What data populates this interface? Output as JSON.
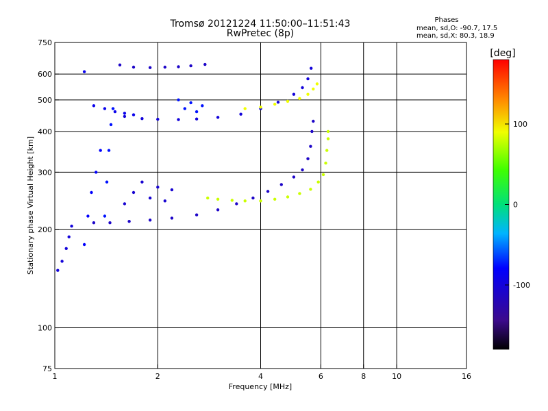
{
  "chart_data": {
    "type": "scatter",
    "title": "Tromsø 20121224 11:50:00–11:51:43",
    "subtitle": "RwPretec (8p)",
    "xlabel": "Frequency [MHz]",
    "ylabel": "Stationary phase Virtual Height [km]",
    "x_scale": "log",
    "y_scale": "log",
    "xlim": [
      1,
      16
    ],
    "ylim": [
      75,
      750
    ],
    "x_ticks": [
      1,
      2,
      4,
      6,
      8,
      10,
      16
    ],
    "x_tick_labels": [
      "1",
      "2",
      "4",
      "6",
      "8",
      "10",
      "16"
    ],
    "y_ticks": [
      75,
      100,
      200,
      300,
      400,
      500,
      600,
      750
    ],
    "y_tick_labels": [
      "75",
      "100",
      "200",
      "300",
      "400",
      "500",
      "600",
      "750"
    ],
    "x_gridlines": [
      2,
      4,
      6,
      8,
      10
    ],
    "y_gridlines": [
      100,
      200,
      300,
      400,
      500,
      600
    ],
    "grid": true,
    "stats": {
      "heading": "Phases",
      "o_line": "mean, sd,O: -90.7, 17.5",
      "x_line": "mean, sd,X:  80.3, 18.9"
    },
    "colorbar": {
      "label": "[deg]",
      "range": [
        -180,
        180
      ],
      "ticks": [
        -100,
        0,
        100
      ],
      "tick_labels": [
        "-100",
        "0",
        "100"
      ],
      "colormap": "rainbow",
      "placement": "right"
    },
    "series": [
      {
        "mode": "O",
        "phase_mean": -90.7,
        "traces": [
          {
            "x": [
              1.55,
              1.7,
              1.9,
              2.1,
              2.3,
              2.5,
              2.75
            ],
            "y": [
              640,
              630,
              628,
              630,
              632,
              636,
              642
            ],
            "phase": -110
          },
          {
            "x": [
              1.6,
              1.8,
              2.0,
              2.3,
              2.6,
              3.0,
              3.5,
              4.0,
              4.5,
              5.0,
              5.3,
              5.5,
              5.62
            ],
            "y": [
              445,
              438,
              436,
              435,
              437,
              442,
              452,
              470,
              492,
              520,
              545,
              580,
              625
            ],
            "phase": -100
          },
          {
            "x": [
              1.3,
              1.45,
              1.65,
              1.9,
              2.2,
              2.6,
              3.0,
              3.4,
              3.8,
              4.2,
              4.6,
              5.0,
              5.3,
              5.5,
              5.6,
              5.65,
              5.7
            ],
            "y": [
              210,
              210,
              212,
              214,
              217,
              222,
              230,
              240,
              250,
              262,
              275,
              290,
              305,
              330,
              360,
              400,
              430
            ],
            "phase": -110
          },
          {
            "x": [
              1.02,
              1.05,
              1.08,
              1.1,
              1.12
            ],
            "y": [
              150,
              160,
              175,
              190,
              205
            ],
            "phase": -100
          },
          {
            "x": [
              1.22,
              1.25,
              1.28,
              1.32,
              1.36
            ],
            "y": [
              180,
              220,
              260,
              300,
              350
            ],
            "phase": -80
          },
          {
            "x": [
              1.4,
              1.42,
              1.44,
              1.46,
              1.48
            ],
            "y": [
              220,
              280,
              350,
              420,
              470
            ],
            "phase": -75
          },
          {
            "x": [
              1.6,
              1.7,
              1.8,
              1.9,
              2.0,
              2.1,
              2.2
            ],
            "y": [
              240,
              260,
              280,
              250,
              270,
              245,
              265
            ],
            "phase": -105
          },
          {
            "x": [
              1.22,
              1.3,
              1.4,
              1.5,
              1.6,
              1.7
            ],
            "y": [
              610,
              480,
              470,
              460,
              455,
              450
            ],
            "phase": -90
          },
          {
            "x": [
              2.3,
              2.4,
              2.5,
              2.6,
              2.7
            ],
            "y": [
              500,
              470,
              490,
              460,
              480
            ],
            "phase": -75
          }
        ]
      },
      {
        "mode": "X",
        "phase_mean": 80.3,
        "traces": [
          {
            "x": [
              2.8,
              3.0,
              3.3,
              3.6,
              4.0,
              4.4,
              4.8,
              5.2,
              5.6,
              5.9,
              6.1,
              6.2,
              6.25,
              6.3,
              6.3
            ],
            "y": [
              250,
              248,
              246,
              245,
              245,
              248,
              252,
              258,
              266,
              280,
              295,
              320,
              350,
              380,
              400
            ],
            "phase": 80
          },
          {
            "x": [
              3.6,
              4.0,
              4.4,
              4.8,
              5.2,
              5.5,
              5.7,
              5.85
            ],
            "y": [
              470,
              475,
              485,
              495,
              505,
              520,
              540,
              560
            ],
            "phase": 90
          }
        ]
      }
    ]
  }
}
